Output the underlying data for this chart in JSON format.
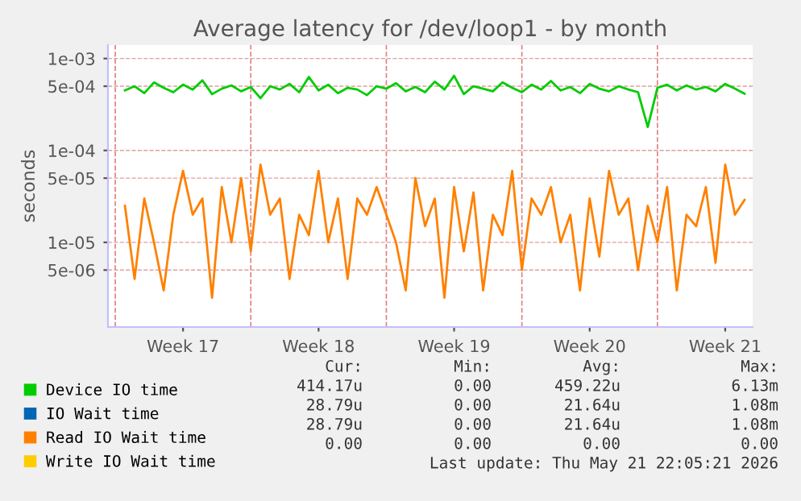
{
  "chart_data": {
    "type": "line",
    "title": "Average latency for /dev/loop1 - by month",
    "ylabel": "seconds",
    "x": [
      "2026-04-19T12:00",
      "2026-04-20T00:00",
      "2026-04-20T12:00",
      "2026-04-21T00:00",
      "2026-04-21T12:00",
      "2026-04-22T00:00",
      "2026-04-22T12:00",
      "2026-04-23T00:00",
      "2026-04-23T12:00",
      "2026-04-24T00:00",
      "2026-04-24T12:00",
      "2026-04-25T00:00",
      "2026-04-25T12:00",
      "2026-04-26T00:00",
      "2026-04-26T12:00",
      "2026-04-27T00:00",
      "2026-04-27T12:00",
      "2026-04-28T00:00",
      "2026-04-28T12:00",
      "2026-04-29T00:00",
      "2026-04-29T12:00",
      "2026-04-30T00:00",
      "2026-04-30T12:00",
      "2026-05-01T00:00",
      "2026-05-01T12:00",
      "2026-05-02T00:00",
      "2026-05-02T12:00",
      "2026-05-03T00:00",
      "2026-05-03T12:00",
      "2026-05-04T00:00",
      "2026-05-04T12:00",
      "2026-05-05T00:00",
      "2026-05-05T12:00",
      "2026-05-06T00:00",
      "2026-05-06T12:00",
      "2026-05-07T00:00",
      "2026-05-07T12:00",
      "2026-05-08T00:00",
      "2026-05-08T12:00",
      "2026-05-09T00:00",
      "2026-05-09T12:00",
      "2026-05-10T00:00",
      "2026-05-10T12:00",
      "2026-05-11T00:00",
      "2026-05-11T12:00",
      "2026-05-12T00:00",
      "2026-05-12T12:00",
      "2026-05-13T00:00",
      "2026-05-13T12:00",
      "2026-05-14T00:00",
      "2026-05-14T12:00",
      "2026-05-15T00:00",
      "2026-05-15T12:00",
      "2026-05-16T00:00",
      "2026-05-16T12:00",
      "2026-05-17T00:00",
      "2026-05-17T12:00",
      "2026-05-18T00:00",
      "2026-05-18T12:00",
      "2026-05-19T00:00",
      "2026-05-19T12:00",
      "2026-05-20T00:00",
      "2026-05-20T12:00",
      "2026-05-21T00:00",
      "2026-05-21T12:00"
    ],
    "series": [
      {
        "name": "Device IO time",
        "color": "#00cc00",
        "values": [
          0.00045,
          0.0005,
          0.00042,
          0.00055,
          0.00048,
          0.00043,
          0.00052,
          0.00046,
          0.00058,
          0.00041,
          0.00047,
          0.00051,
          0.00044,
          0.00049,
          0.00037,
          0.0005,
          0.00046,
          0.00053,
          0.00043,
          0.00063,
          0.00045,
          0.00052,
          0.00042,
          0.00048,
          0.00046,
          0.0004,
          0.0005,
          0.00047,
          0.00054,
          0.00044,
          0.00049,
          0.00043,
          0.00056,
          0.00046,
          0.00065,
          0.00041,
          0.0005,
          0.00047,
          0.00044,
          0.00055,
          0.00048,
          0.00043,
          0.00052,
          0.00046,
          0.00057,
          0.00045,
          0.00049,
          0.00042,
          0.00053,
          0.00047,
          0.00044,
          0.0005,
          0.00046,
          0.00043,
          0.00018,
          0.00048,
          0.00052,
          0.00045,
          0.00051,
          0.00046,
          0.00049,
          0.00044,
          0.00053,
          0.00047,
          0.000414
        ]
      },
      {
        "name": "IO Wait time",
        "color": "#0066b3",
        "values": [
          null,
          null,
          null,
          null,
          null,
          null,
          null,
          null,
          null,
          null,
          null,
          null,
          null,
          null,
          null,
          null,
          null,
          null,
          null,
          null,
          null,
          null,
          null,
          null,
          null,
          null,
          null,
          null,
          null,
          null,
          null,
          null,
          null,
          null,
          null,
          null,
          null,
          null,
          null,
          null,
          null,
          null,
          null,
          null,
          null,
          null,
          null,
          null,
          null,
          null,
          null,
          null,
          null,
          null,
          null,
          null,
          null,
          null,
          null,
          null,
          null,
          null,
          null,
          null,
          null
        ]
      },
      {
        "name": "Read IO Wait time",
        "color": "#ff8000",
        "values": [
          2.5e-05,
          4e-06,
          3e-05,
          1e-05,
          3e-06,
          2e-05,
          6e-05,
          2e-05,
          3e-05,
          2.5e-06,
          4e-05,
          1e-05,
          5e-05,
          8e-06,
          7e-05,
          2e-05,
          3e-05,
          4e-06,
          2e-05,
          1.2e-05,
          6e-05,
          1e-05,
          3e-05,
          4e-06,
          3e-05,
          2e-05,
          4e-05,
          2e-05,
          1e-05,
          3e-06,
          5e-05,
          1.5e-05,
          3e-05,
          2.5e-06,
          4e-05,
          8e-06,
          3.5e-05,
          3e-06,
          2e-05,
          1.2e-05,
          6e-05,
          5e-06,
          3e-05,
          2e-05,
          4e-05,
          1e-05,
          2e-05,
          3e-06,
          3e-05,
          7e-06,
          6e-05,
          2e-05,
          3e-05,
          5e-06,
          2.5e-05,
          1e-05,
          4e-05,
          3e-06,
          2e-05,
          1.5e-05,
          4e-05,
          6e-06,
          7e-05,
          2e-05,
          2.9e-05
        ]
      },
      {
        "name": "Write IO Wait time",
        "color": "#ffcc00",
        "values": [
          null,
          null,
          null,
          null,
          null,
          null,
          null,
          null,
          null,
          null,
          null,
          null,
          null,
          null,
          null,
          null,
          null,
          null,
          null,
          null,
          null,
          null,
          null,
          null,
          null,
          null,
          null,
          null,
          null,
          null,
          null,
          null,
          null,
          null,
          null,
          null,
          null,
          null,
          null,
          null,
          null,
          null,
          null,
          null,
          null,
          null,
          null,
          null,
          null,
          null,
          null,
          null,
          null,
          null,
          null,
          null,
          null,
          null,
          null,
          null,
          null,
          null,
          null,
          null,
          null
        ]
      }
    ],
    "log": "y",
    "xlim": [
      "2026-04-18T15:00",
      "2026-05-21T22:00"
    ],
    "ylim": [
      1.2e-06,
      0.0014
    ],
    "xticks": [
      {
        "value": "2026-04-22T12:00",
        "label": "Week 17"
      },
      {
        "value": "2026-04-29T12:00",
        "label": "Week 18"
      },
      {
        "value": "2026-05-06T12:00",
        "label": "Week 19"
      },
      {
        "value": "2026-05-13T12:00",
        "label": "Week 20"
      },
      {
        "value": "2026-05-20T12:00",
        "label": "Week 21"
      }
    ],
    "yticks": [
      {
        "value": 5e-06,
        "label": "5e-06"
      },
      {
        "value": 1e-05,
        "label": "1e-05"
      },
      {
        "value": 5e-05,
        "label": "5e-05"
      },
      {
        "value": 0.0001,
        "label": "1e-04"
      },
      {
        "value": 0.0005,
        "label": "5e-04"
      },
      {
        "value": 0.001,
        "label": "1e-03"
      }
    ],
    "ref_lines": [
      {
        "axis": "x",
        "value": "2026-04-19T00:00",
        "color": "#e08080",
        "line_style": "dashed"
      },
      {
        "axis": "x",
        "value": "2026-04-26T00:00",
        "color": "#e08080",
        "line_style": "dashed"
      },
      {
        "axis": "x",
        "value": "2026-05-03T00:00",
        "color": "#e08080",
        "line_style": "dashed"
      },
      {
        "axis": "x",
        "value": "2026-05-10T00:00",
        "color": "#e08080",
        "line_style": "dashed"
      },
      {
        "axis": "x",
        "value": "2026-05-17T00:00",
        "color": "#e08080",
        "line_style": "dashed"
      }
    ],
    "grid": "y",
    "legend": "bottom",
    "line_style": "solid",
    "marker": "none",
    "annotations": [
      "Cur:",
      "Min:",
      "Avg:",
      "Max:",
      "414.17u",
      "0.00",
      "459.22u",
      "6.13m",
      "28.79u",
      "0.00",
      "21.64u",
      "1.08m",
      "28.79u",
      "0.00",
      "21.64u",
      "1.08m",
      "0.00",
      "0.00",
      "0.00",
      "0.00",
      "Last update: Thu May 21 22:05:21 2026"
    ]
  }
}
